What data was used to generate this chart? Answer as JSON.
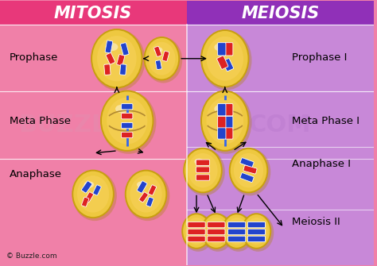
{
  "title_mitosis": "MITOSIS",
  "title_meiosis": "MEIOSIS",
  "bg_left": "#F080A8",
  "bg_right": "#C888D8",
  "header_left": "#E8387A",
  "header_right": "#9030B8",
  "header_text_color": "white",
  "cell_fill": "#F5D055",
  "cell_fill2": "#EEC840",
  "cell_edge": "#C8A010",
  "cell_shadow": "#B08010",
  "red_chr": "#DD2222",
  "blue_chr": "#2244CC",
  "label_color": "#111111",
  "wm_left": "#E090B0",
  "wm_right": "#B878CC",
  "copyright": "© Buzzle.com",
  "row_dividers": [
    305,
    220,
    135
  ],
  "row_dividers_r": [
    305,
    220,
    150,
    70
  ]
}
